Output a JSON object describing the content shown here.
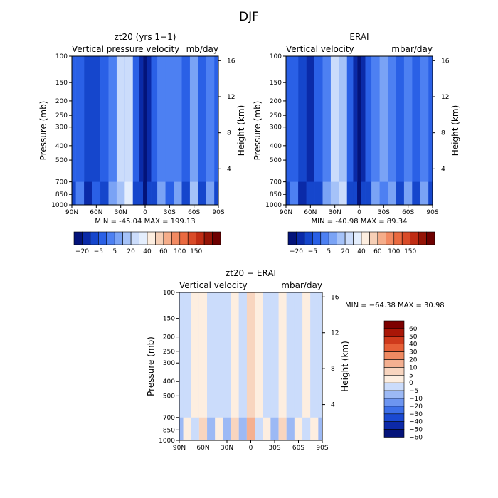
{
  "figure": {
    "title": "DJF"
  },
  "colors": {
    "blues": [
      "#03137a",
      "#0a2aa8",
      "#1546cc",
      "#2a60e6",
      "#4d80f2",
      "#7aa3f5",
      "#a5c2f8",
      "#cbdcfb",
      "#e4eefd"
    ],
    "neutral": "#fdeee0",
    "reds": [
      "#f6cfb6",
      "#f5ad8a",
      "#f28a62",
      "#ea6a40",
      "#d94b28",
      "#c02d14",
      "#951406",
      "#6e0000"
    ],
    "diff_scale": [
      "#04137a",
      "#0c29a8",
      "#1a49d2",
      "#3d6fe8",
      "#6d95f0",
      "#9cb9f5",
      "#cbdcfb",
      "#fdeee0",
      "#f8d5bf",
      "#f4b091",
      "#ef8a62",
      "#e65f37",
      "#cf3a1c",
      "#a91607",
      "#7d0000"
    ]
  },
  "chart_data": [
    {
      "type": "heatmap",
      "panel": "model",
      "title": "zt20 (yrs 1−1)",
      "subtitle_left": "Vertical pressure velocity",
      "subtitle_right": "mb/day",
      "ylabel": "Pressure (mb)",
      "ylabel_right": "Height (km)",
      "x_ticks": [
        "90N",
        "60N",
        "30N",
        "0",
        "30S",
        "60S",
        "90S"
      ],
      "y_ticks": [
        "100",
        "150",
        "200",
        "250",
        "300",
        "400",
        "500",
        "700",
        "850",
        "1000"
      ],
      "y_ticks_right": [
        "16",
        "12",
        "8",
        "4"
      ],
      "xlim": [
        90,
        -90
      ],
      "ylim": [
        1000,
        100
      ],
      "stats": {
        "min_label": "MIN =",
        "min": "-45.04",
        "max_label": "MAX =",
        "max": "199.13"
      },
      "colorbar_labels": [
        "−20",
        "−5",
        "5",
        "20",
        "40",
        "60",
        "100",
        "150"
      ],
      "columns": [
        {
          "x": 90,
          "v": 3
        },
        {
          "x": 80,
          "v": 3
        },
        {
          "x": 70,
          "v": 2
        },
        {
          "x": 60,
          "v": 2
        },
        {
          "x": 50,
          "v": 3
        },
        {
          "x": 40,
          "v": 4
        },
        {
          "x": 30,
          "v": 7
        },
        {
          "x": 20,
          "v": 7
        },
        {
          "x": 10,
          "v": 3
        },
        {
          "x": 5,
          "v": 1
        },
        {
          "x": 0,
          "v": 0
        },
        {
          "x": -5,
          "v": 1
        },
        {
          "x": -10,
          "v": 3
        },
        {
          "x": -20,
          "v": 4
        },
        {
          "x": -30,
          "v": 4
        },
        {
          "x": -40,
          "v": 4
        },
        {
          "x": -50,
          "v": 3
        },
        {
          "x": -60,
          "v": 5
        },
        {
          "x": -70,
          "v": 3
        },
        {
          "x": -80,
          "v": 4
        },
        {
          "x": -90,
          "v": 3
        }
      ]
    },
    {
      "type": "heatmap",
      "panel": "reanalysis",
      "title": "ERAI",
      "subtitle_left": "Vertical velocity",
      "subtitle_right": "mbar/day",
      "ylabel": "Pressure (mb)",
      "ylabel_right": "Height (km)",
      "x_ticks": [
        "90N",
        "60N",
        "30N",
        "0",
        "30S",
        "60S",
        "90S"
      ],
      "y_ticks": [
        "100",
        "150",
        "200",
        "250",
        "300",
        "400",
        "500",
        "700",
        "850",
        "1000"
      ],
      "y_ticks_right": [
        "16",
        "12",
        "8",
        "4"
      ],
      "xlim": [
        90,
        -90
      ],
      "ylim": [
        1000,
        100
      ],
      "stats": {
        "min_label": "MIN =",
        "min": "-40.98",
        "max_label": "MAX =",
        "max": "89.34"
      },
      "colorbar_labels": [
        "−20",
        "−5",
        "5",
        "20",
        "40",
        "60",
        "100",
        "150"
      ],
      "columns": [
        {
          "x": 90,
          "v": 3
        },
        {
          "x": 80,
          "v": 3
        },
        {
          "x": 70,
          "v": 2
        },
        {
          "x": 60,
          "v": 1
        },
        {
          "x": 50,
          "v": 3
        },
        {
          "x": 40,
          "v": 4
        },
        {
          "x": 30,
          "v": 7
        },
        {
          "x": 20,
          "v": 6
        },
        {
          "x": 10,
          "v": 3
        },
        {
          "x": 5,
          "v": 1
        },
        {
          "x": 0,
          "v": 0
        },
        {
          "x": -5,
          "v": 1
        },
        {
          "x": -10,
          "v": 3
        },
        {
          "x": -20,
          "v": 4
        },
        {
          "x": -30,
          "v": 5
        },
        {
          "x": -40,
          "v": 4
        },
        {
          "x": -50,
          "v": 3
        },
        {
          "x": -60,
          "v": 4
        },
        {
          "x": -70,
          "v": 3
        },
        {
          "x": -80,
          "v": 4
        },
        {
          "x": -90,
          "v": 3
        }
      ]
    },
    {
      "type": "heatmap",
      "panel": "difference",
      "title": "zt20 − ERAI",
      "subtitle_left": "Vertical velocity",
      "subtitle_right": "mbar/day",
      "ylabel": "Pressure (mb)",
      "ylabel_right": "Height (km)",
      "x_ticks": [
        "90N",
        "60N",
        "30N",
        "0",
        "30S",
        "60S",
        "90S"
      ],
      "y_ticks": [
        "100",
        "150",
        "200",
        "250",
        "300",
        "400",
        "500",
        "700",
        "850",
        "1000"
      ],
      "y_ticks_right": [
        "16",
        "12",
        "8",
        "4"
      ],
      "xlim": [
        90,
        -90
      ],
      "ylim": [
        1000,
        100
      ],
      "stats": {
        "min_label": "MIN =",
        "min": "−64.38",
        "max_label": "MAX =",
        "max": "30.98"
      },
      "colorbar_labels": [
        "60",
        "50",
        "40",
        "30",
        "20",
        "10",
        "5",
        "0",
        "−5",
        "−10",
        "−20",
        "−30",
        "−40",
        "−50",
        "−60"
      ],
      "columns": [
        {
          "x": 90,
          "v": 6
        },
        {
          "x": 80,
          "v": 6
        },
        {
          "x": 70,
          "v": 7
        },
        {
          "x": 60,
          "v": 7
        },
        {
          "x": 50,
          "v": 6
        },
        {
          "x": 40,
          "v": 6
        },
        {
          "x": 30,
          "v": 6
        },
        {
          "x": 20,
          "v": 7
        },
        {
          "x": 10,
          "v": 6
        },
        {
          "x": 0,
          "v": 8
        },
        {
          "x": -10,
          "v": 7
        },
        {
          "x": -20,
          "v": 6
        },
        {
          "x": -30,
          "v": 6
        },
        {
          "x": -40,
          "v": 7
        },
        {
          "x": -50,
          "v": 6
        },
        {
          "x": -60,
          "v": 6
        },
        {
          "x": -70,
          "v": 7
        },
        {
          "x": -80,
          "v": 6
        },
        {
          "x": -90,
          "v": 6
        }
      ]
    }
  ]
}
